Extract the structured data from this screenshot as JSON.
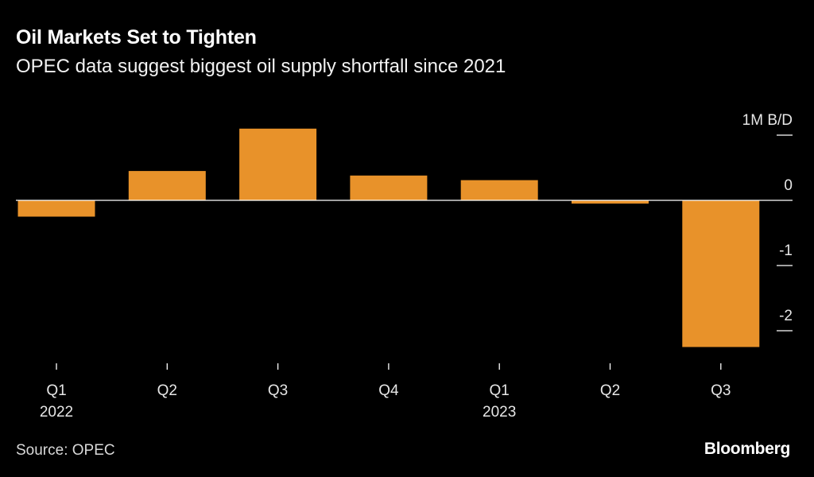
{
  "title": "Oil Markets Set to Tighten",
  "subtitle": "OPEC data suggest biggest oil supply shortfall since 2021",
  "source": "Source: OPEC",
  "brand": "Bloomberg",
  "colors": {
    "background": "#000000",
    "bar": "#E8922A",
    "text": "#ffffff",
    "axis": "#ffffff"
  },
  "chart_data": {
    "type": "bar",
    "title": "Oil Markets Set to Tighten",
    "subtitle": "OPEC data suggest biggest oil supply shortfall since 2021",
    "ylabel": "1M B/D",
    "unit_label": "1M B/D",
    "categories": [
      "Q1 2022",
      "Q2 2022",
      "Q3 2022",
      "Q4 2022",
      "Q1 2023",
      "Q2 2023",
      "Q3 2023"
    ],
    "x_tick_labels": [
      {
        "quarter": "Q1",
        "year": "2022"
      },
      {
        "quarter": "Q2",
        "year": ""
      },
      {
        "quarter": "Q3",
        "year": ""
      },
      {
        "quarter": "Q4",
        "year": ""
      },
      {
        "quarter": "Q1",
        "year": "2023"
      },
      {
        "quarter": "Q2",
        "year": ""
      },
      {
        "quarter": "Q3",
        "year": ""
      }
    ],
    "values": [
      -0.25,
      0.45,
      1.1,
      0.38,
      0.31,
      -0.05,
      -2.25
    ],
    "y_ticks": [
      1,
      0,
      -1,
      -2
    ],
    "y_tick_labels": [
      "1M B/D",
      "0",
      "-1",
      "-2"
    ],
    "ylim": [
      -2.5,
      1.2
    ],
    "grid": false,
    "legend": "none",
    "y_axis_position": "right"
  }
}
